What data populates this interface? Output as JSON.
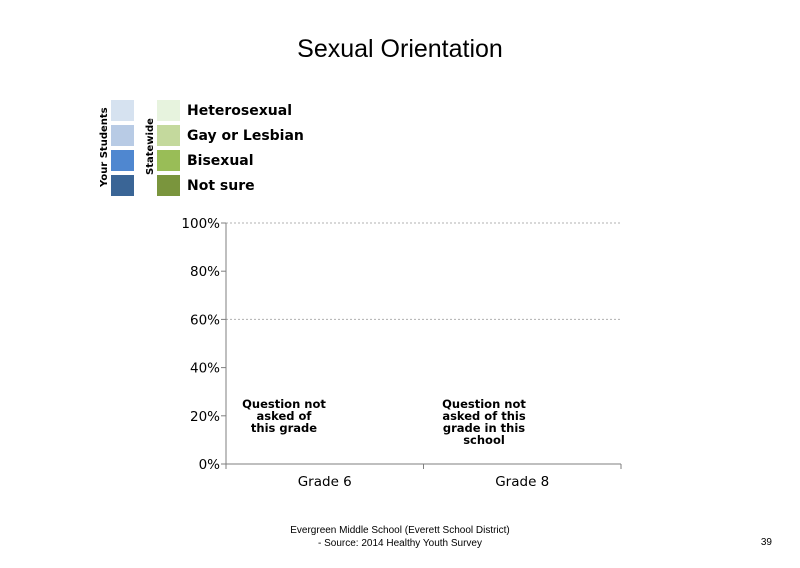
{
  "title": "Sexual Orientation",
  "legend": {
    "group_your_students": "Your Students",
    "group_statewide": "Statewide",
    "items": [
      {
        "label": "Heterosexual",
        "your_color": "#d6e2f0",
        "state_color": "#e7f3de"
      },
      {
        "label": "Gay or Lesbian",
        "your_color": "#b8cbe5",
        "state_color": "#c4d99d"
      },
      {
        "label": "Bisexual",
        "your_color": "#4f87d0",
        "state_color": "#99bd57"
      },
      {
        "label": "Not sure",
        "your_color": "#3a6596",
        "state_color": "#7a953d"
      }
    ]
  },
  "chart_data": {
    "type": "bar",
    "categories": [
      "Grade 6",
      "Grade 8"
    ],
    "series": [],
    "y_ticks": [
      "0%",
      "20%",
      "40%",
      "60%",
      "80%",
      "100%"
    ],
    "ylim": [
      0,
      100
    ],
    "grid_y": [
      60,
      100
    ],
    "annotations": [
      {
        "category": "Grade 6",
        "text": "Question not asked of this grade",
        "lines": [
          "Question not",
          "asked of",
          "this grade"
        ]
      },
      {
        "category": "Grade 8",
        "text": "Question not asked of this grade in this school",
        "lines": [
          "Question not",
          "asked of this",
          "grade in this",
          "school"
        ]
      }
    ]
  },
  "footer": {
    "line1": "Evergreen Middle School (Everett School District)",
    "line2": "- Source: 2014 Healthy  Youth Survey"
  },
  "page_number": "39"
}
